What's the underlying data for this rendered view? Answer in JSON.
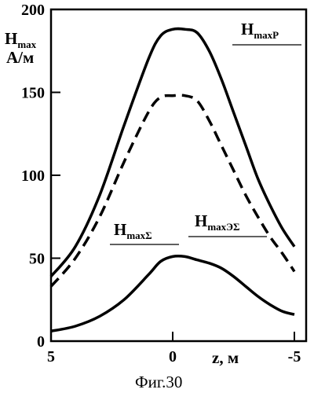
{
  "chart_data": {
    "type": "line",
    "ylabel_main": "H",
    "ylabel_sub": "max",
    "yunit": "А/м",
    "xlabel": "z, м",
    "caption": "Фиг.30",
    "xlim": [
      5,
      -5
    ],
    "ylim": [
      0,
      200
    ],
    "xticks": [
      "5",
      "0",
      "-5"
    ],
    "yticks": [
      "200",
      "150",
      "100",
      "50",
      "0"
    ],
    "grid": false,
    "series": [
      {
        "name_main": "H",
        "name_sub": "maxP",
        "style": "solid",
        "x": [
          5,
          4,
          3,
          2,
          1,
          0.5,
          0,
          -0.5,
          -1,
          -1.5,
          -2,
          -2.5,
          -3,
          -3.5,
          -4,
          -4.5,
          -5
        ],
        "y": [
          39,
          57,
          88,
          130,
          170,
          184,
          188,
          188,
          186,
          175,
          158,
          138,
          118,
          98,
          82,
          68,
          57
        ]
      },
      {
        "name_main": "H",
        "name_sub": "maxЭΣ",
        "style": "dashed",
        "x": [
          5,
          4,
          3,
          2,
          1,
          0.5,
          0,
          -0.5,
          -1,
          -1.5,
          -2,
          -2.5,
          -3,
          -3.5,
          -4,
          -4.5,
          -5
        ],
        "y": [
          33,
          50,
          75,
          108,
          138,
          147,
          148,
          148,
          145,
          133,
          118,
          103,
          88,
          75,
          63,
          53,
          42
        ]
      },
      {
        "name_main": "H",
        "name_sub": "maxΣ",
        "style": "solid",
        "x": [
          5,
          4,
          3,
          2,
          1,
          0.5,
          0,
          -0.5,
          -1,
          -1.5,
          -2,
          -2.5,
          -3,
          -3.5,
          -4,
          -4.5,
          -5
        ],
        "y": [
          6,
          9,
          15,
          25,
          40,
          48,
          51,
          51,
          49,
          47,
          44,
          39,
          33,
          27,
          22,
          18,
          16
        ]
      }
    ]
  }
}
